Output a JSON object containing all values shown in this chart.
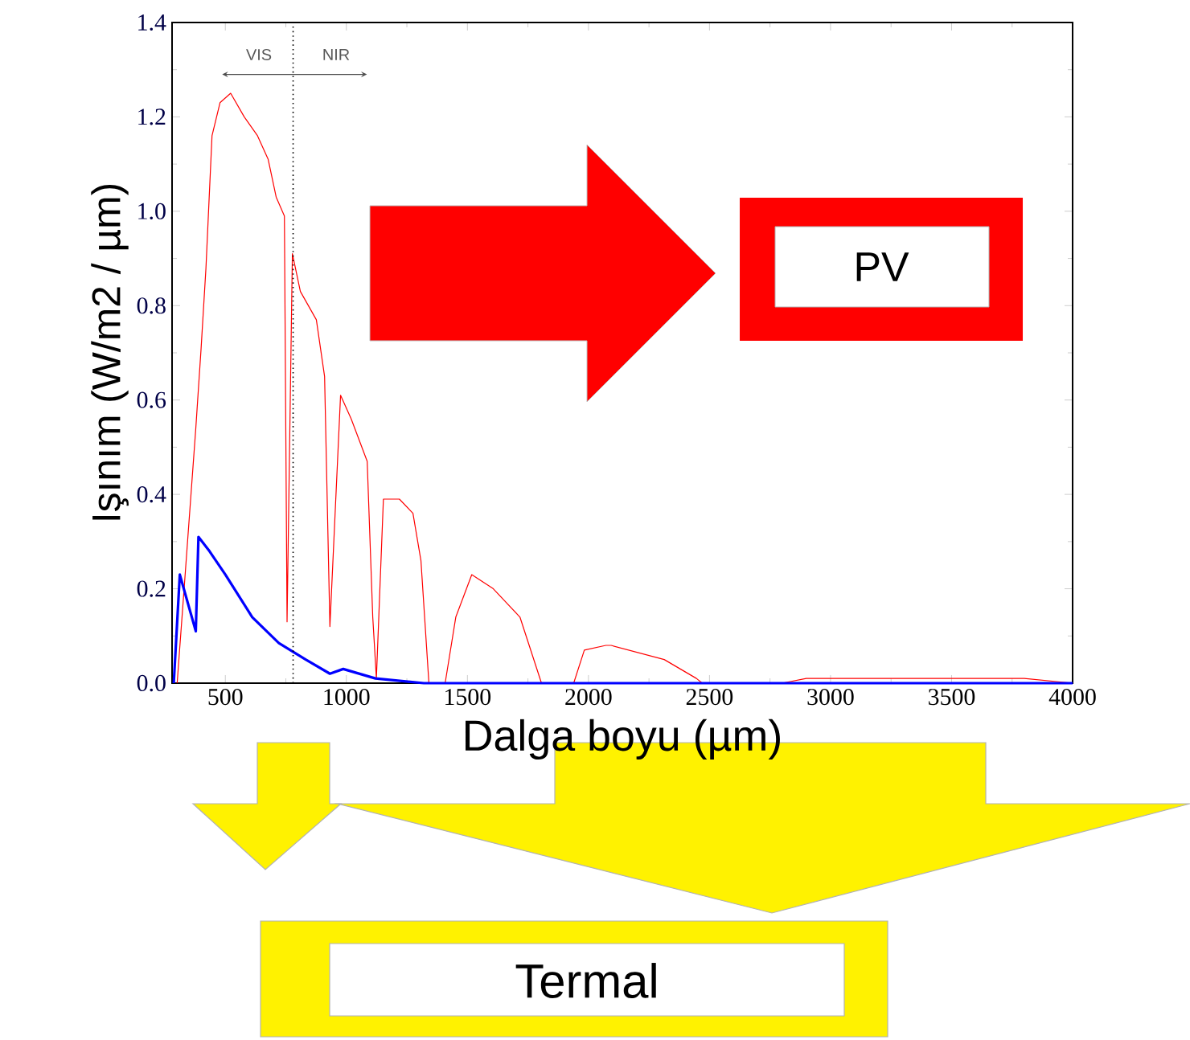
{
  "chart_data": {
    "type": "line",
    "xlabel": "Dalga boyu (µm)",
    "ylabel": "Işınım (W/m2 / µm)",
    "xlim": [
      280,
      4000
    ],
    "ylim": [
      0,
      1.4
    ],
    "xticks": [
      500,
      1000,
      1500,
      2000,
      2500,
      3000,
      3500,
      4000
    ],
    "yticks": [
      {
        "value": 0,
        "label": "0.0"
      },
      {
        "value": 0.2,
        "label": "0.2"
      },
      {
        "value": 0.4,
        "label": "0.4"
      },
      {
        "value": 0.6,
        "label": "0.6"
      },
      {
        "value": 0.8,
        "label": "0.8"
      },
      {
        "value": 1.0,
        "label": "1.0"
      },
      {
        "value": 1.2,
        "label": "1.2"
      },
      {
        "value": 1.4,
        "label": "1.4"
      }
    ],
    "series": [
      {
        "color": "#ff0000",
        "x": [
          301,
          334,
          378,
          400,
          420,
          445,
          478,
          522,
          578,
          633,
          677,
          710,
          744,
          755,
          777,
          810,
          832,
          876,
          910,
          932,
          976,
          1020,
          1086,
          1109,
          1124,
          1153,
          1219,
          1275,
          1308,
          1341,
          1408,
          1452,
          1518,
          1607,
          1717,
          1806,
          1939,
          1983,
          2072,
          2094,
          2313,
          2446,
          2470,
          2800,
          2900,
          3800,
          4000
        ],
        "values": [
          0,
          0.23,
          0.54,
          0.71,
          0.88,
          1.16,
          1.23,
          1.25,
          1.2,
          1.16,
          1.11,
          1.03,
          0.99,
          0.13,
          0.91,
          0.83,
          0.81,
          0.77,
          0.65,
          0.12,
          0.61,
          0.56,
          0.47,
          0.14,
          0.01,
          0.39,
          0.39,
          0.36,
          0.26,
          0,
          0,
          0.14,
          0.23,
          0.2,
          0.14,
          0,
          0,
          0.07,
          0.08,
          0.08,
          0.05,
          0.01,
          0,
          0,
          0.01,
          0.01,
          0
        ]
      },
      {
        "color": "#0000ff",
        "x": [
          287,
          312,
          378,
          389,
          434,
          500,
          611,
          721,
          832,
          932,
          987,
          1120,
          1320,
          4000
        ],
        "values": [
          0,
          0.23,
          0.11,
          0.31,
          0.28,
          0.23,
          0.14,
          0.085,
          0.05,
          0.02,
          0.03,
          0.01,
          0,
          0
        ]
      }
    ],
    "ref_lines": [
      {
        "axis": "x",
        "value": 780,
        "line_style": "dotted",
        "color": "#000000"
      }
    ],
    "annotations": [
      "VIS",
      "NIR",
      "PV",
      "Termal"
    ]
  }
}
